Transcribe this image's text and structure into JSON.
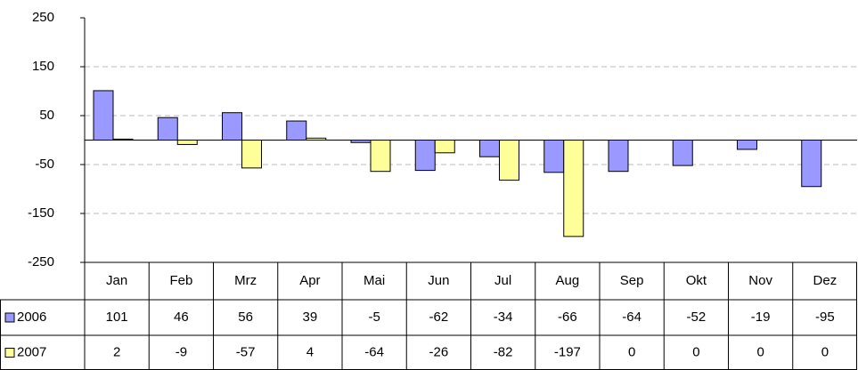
{
  "chart_data": {
    "type": "bar",
    "categories": [
      "Jan",
      "Feb",
      "Mrz",
      "Apr",
      "Mai",
      "Jun",
      "Jul",
      "Aug",
      "Sep",
      "Okt",
      "Nov",
      "Dez"
    ],
    "series": [
      {
        "name": "2006",
        "color": "#9999ff",
        "values": [
          101,
          46,
          56,
          39,
          -5,
          -62,
          -34,
          -66,
          -64,
          -52,
          -19,
          -95
        ]
      },
      {
        "name": "2007",
        "color": "#ffff99",
        "values": [
          2,
          -9,
          -57,
          4,
          -64,
          -26,
          -82,
          -197,
          0,
          0,
          0,
          0
        ]
      }
    ],
    "ylim": [
      -250,
      250
    ],
    "yticks": [
      -250,
      -150,
      -50,
      50,
      150,
      250
    ],
    "grid": true
  }
}
